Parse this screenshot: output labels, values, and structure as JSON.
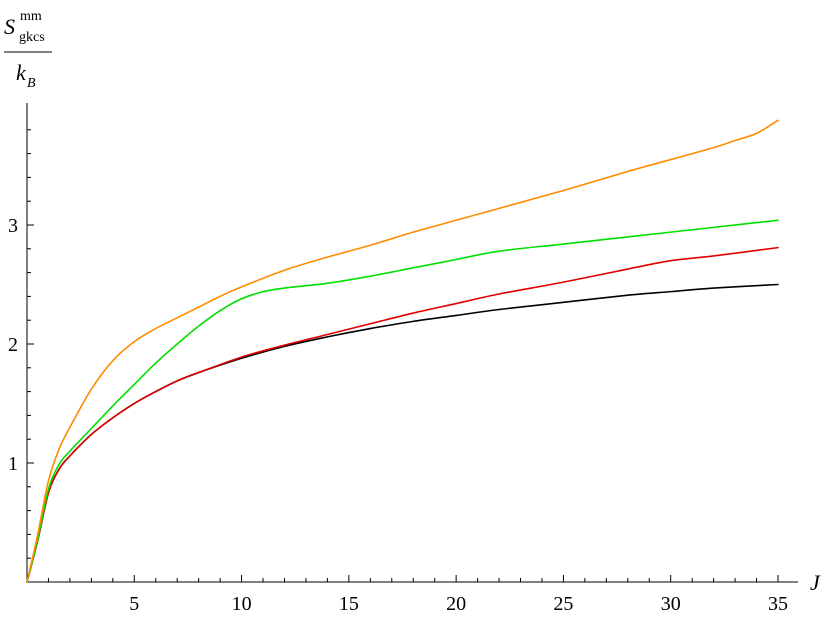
{
  "chart_data": {
    "type": "line",
    "title": "",
    "xlabel": "J",
    "ylabel": {
      "symbol": "S",
      "superscript": "mm",
      "subscript": "gkcs",
      "denominator_symbol": "k",
      "denominator_subscript": "B"
    },
    "xlim": [
      0,
      35.5
    ],
    "ylim": [
      0,
      3.9
    ],
    "x_ticks": [
      5,
      10,
      15,
      20,
      25,
      30,
      35
    ],
    "x_tick_labels": [
      "5",
      "10",
      "15",
      "20",
      "25",
      "30",
      "35"
    ],
    "y_ticks": [
      1,
      2,
      3
    ],
    "y_tick_labels": [
      "1",
      "2",
      "3"
    ],
    "grid": false,
    "legend": "none",
    "series": [
      {
        "color": "#000000",
        "x": [
          0,
          0.5,
          1,
          1.5,
          2,
          3,
          4,
          5,
          6,
          7,
          8,
          10,
          12,
          14,
          16,
          18,
          20,
          22,
          25,
          28,
          30,
          32,
          35
        ],
        "y": [
          0,
          0.35,
          0.75,
          0.95,
          1.06,
          1.24,
          1.38,
          1.5,
          1.6,
          1.69,
          1.76,
          1.88,
          1.98,
          2.06,
          2.13,
          2.19,
          2.24,
          2.29,
          2.35,
          2.41,
          2.44,
          2.47,
          2.5
        ]
      },
      {
        "color": "#e00000",
        "x": [
          0,
          0.5,
          1,
          1.5,
          2,
          3,
          4,
          5,
          6,
          7,
          8,
          10,
          12,
          14,
          16,
          18,
          20,
          22,
          25,
          28,
          30,
          32,
          35
        ],
        "y": [
          0,
          0.35,
          0.75,
          0.95,
          1.06,
          1.24,
          1.38,
          1.5,
          1.6,
          1.69,
          1.76,
          1.89,
          1.99,
          2.08,
          2.17,
          2.26,
          2.34,
          2.42,
          2.52,
          2.63,
          2.7,
          2.74,
          2.81
        ]
      },
      {
        "color": "#00e000",
        "x": [
          0,
          0.5,
          1,
          1.5,
          2,
          3,
          4,
          5,
          6,
          7,
          8,
          9,
          10,
          11,
          12,
          13,
          14,
          16,
          18,
          20,
          22,
          25,
          28,
          30,
          32,
          35
        ],
        "y": [
          0,
          0.36,
          0.78,
          0.99,
          1.1,
          1.29,
          1.48,
          1.66,
          1.84,
          2.0,
          2.15,
          2.28,
          2.38,
          2.44,
          2.47,
          2.49,
          2.51,
          2.57,
          2.64,
          2.71,
          2.78,
          2.84,
          2.9,
          2.94,
          2.98,
          3.04
        ]
      },
      {
        "color": "#ff8c00",
        "x": [
          0,
          0.5,
          1,
          1.5,
          2,
          3,
          4,
          5,
          6,
          7,
          8,
          9,
          10,
          12,
          14,
          16,
          18,
          20,
          22,
          25,
          28,
          30,
          32,
          33,
          34,
          35
        ],
        "y": [
          0,
          0.4,
          0.85,
          1.12,
          1.3,
          1.62,
          1.86,
          2.02,
          2.13,
          2.22,
          2.31,
          2.4,
          2.48,
          2.62,
          2.73,
          2.83,
          2.94,
          3.04,
          3.14,
          3.29,
          3.45,
          3.55,
          3.65,
          3.71,
          3.77,
          3.88
        ]
      }
    ]
  }
}
